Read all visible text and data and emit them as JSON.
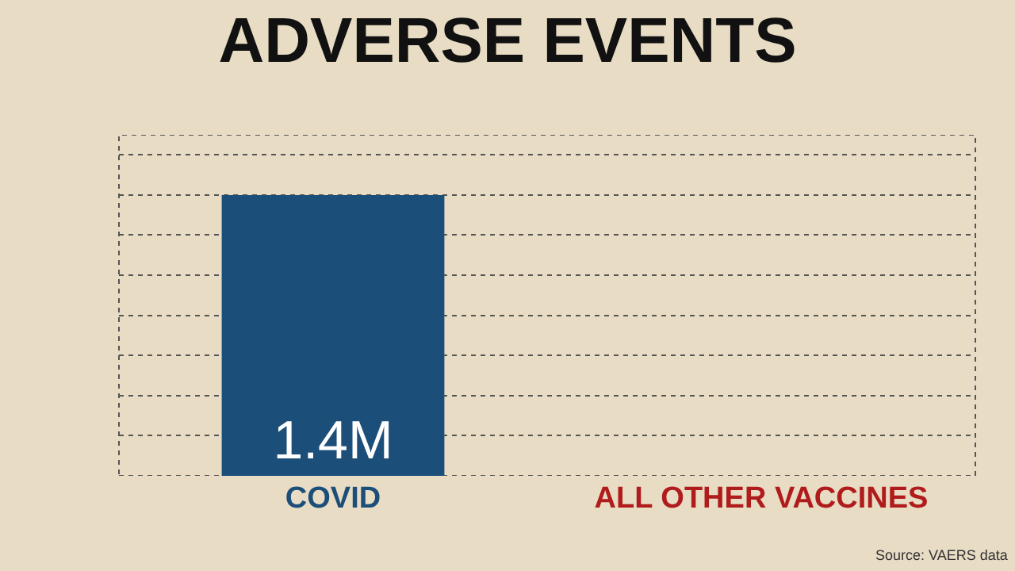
{
  "chart_data": {
    "type": "bar",
    "title": "ADVERSE EVENTS",
    "categories": [
      "COVID",
      "ALL OTHER VACCINES"
    ],
    "values": [
      1400000,
      null
    ],
    "ylim": [
      0,
      1700000
    ],
    "value_labels": [
      "1.4M",
      null
    ],
    "colors": [
      "#1c4e7a",
      "#b01c1c"
    ],
    "grid": true,
    "annotations": [
      "Source: VAERS data"
    ]
  }
}
